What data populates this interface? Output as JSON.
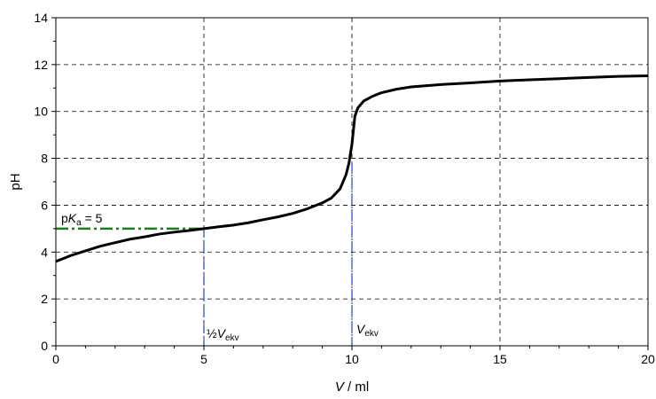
{
  "chart_data": {
    "type": "line",
    "title": "",
    "xlabel": {
      "italic": "V",
      "rest": " / ml"
    },
    "ylabel": "pH",
    "xlim": [
      0,
      20
    ],
    "ylim": [
      0,
      14
    ],
    "xticks": [
      0,
      5,
      10,
      15,
      20
    ],
    "yticks": [
      0,
      2,
      4,
      6,
      8,
      10,
      12,
      14
    ],
    "xtick_labels": [
      "0",
      "5",
      "10",
      "15",
      "20"
    ],
    "ytick_labels": [
      "0",
      "2",
      "4",
      "6",
      "8",
      "10",
      "12",
      "14"
    ],
    "grid": "dashed",
    "series": [
      {
        "color": "#000000",
        "x": [
          0,
          0.2,
          0.5,
          1,
          1.5,
          2,
          2.5,
          3,
          3.5,
          4,
          4.5,
          5,
          5.5,
          6,
          6.5,
          7,
          7.5,
          8,
          8.5,
          9,
          9.3,
          9.6,
          9.8,
          9.9,
          10,
          10.1,
          10.2,
          10.4,
          10.7,
          11,
          11.5,
          12,
          13,
          14,
          15,
          16,
          17,
          18,
          19,
          20
        ],
        "y": [
          3.6,
          3.7,
          3.85,
          4.05,
          4.25,
          4.4,
          4.55,
          4.65,
          4.77,
          4.85,
          4.92,
          5.0,
          5.08,
          5.15,
          5.25,
          5.38,
          5.5,
          5.65,
          5.85,
          6.1,
          6.3,
          6.7,
          7.3,
          7.8,
          8.6,
          9.8,
          10.15,
          10.45,
          10.65,
          10.8,
          10.95,
          11.05,
          11.15,
          11.22,
          11.3,
          11.35,
          11.4,
          11.45,
          11.5,
          11.52
        ]
      }
    ],
    "annotations": {
      "pka": {
        "prefix": "p",
        "italic": "K",
        "sub": "a",
        "suffix": " = 5",
        "value": 5,
        "color": "#1f7a1f"
      },
      "half_eq": {
        "prefix": "½",
        "italic": "V",
        "sub": "ekv",
        "x": 5
      },
      "eq": {
        "italic": "V",
        "sub": "ekv",
        "x": 10
      },
      "drop_line_color": "#1f3fd0"
    }
  }
}
